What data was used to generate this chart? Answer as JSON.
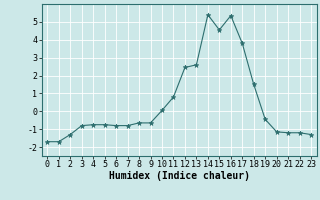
{
  "x": [
    0,
    1,
    2,
    3,
    4,
    5,
    6,
    7,
    8,
    9,
    10,
    11,
    12,
    13,
    14,
    15,
    16,
    17,
    18,
    19,
    20,
    21,
    22,
    23
  ],
  "y": [
    -1.7,
    -1.7,
    -1.3,
    -0.8,
    -0.75,
    -0.75,
    -0.8,
    -0.8,
    -0.65,
    -0.65,
    0.05,
    0.8,
    2.45,
    2.6,
    5.4,
    4.55,
    5.35,
    3.8,
    1.5,
    -0.45,
    -1.15,
    -1.2,
    -1.2,
    -1.3
  ],
  "line_color": "#2d6e6e",
  "marker": "*",
  "marker_size": 3.5,
  "bg_color": "#cce8e8",
  "grid_color": "#ffffff",
  "xlabel": "Humidex (Indice chaleur)",
  "xlabel_fontsize": 7,
  "tick_fontsize": 6,
  "ylim": [
    -2.5,
    6.0
  ],
  "xlim": [
    -0.5,
    23.5
  ],
  "yticks": [
    -2,
    -1,
    0,
    1,
    2,
    3,
    4,
    5
  ],
  "xticks": [
    0,
    1,
    2,
    3,
    4,
    5,
    6,
    7,
    8,
    9,
    10,
    11,
    12,
    13,
    14,
    15,
    16,
    17,
    18,
    19,
    20,
    21,
    22,
    23
  ]
}
